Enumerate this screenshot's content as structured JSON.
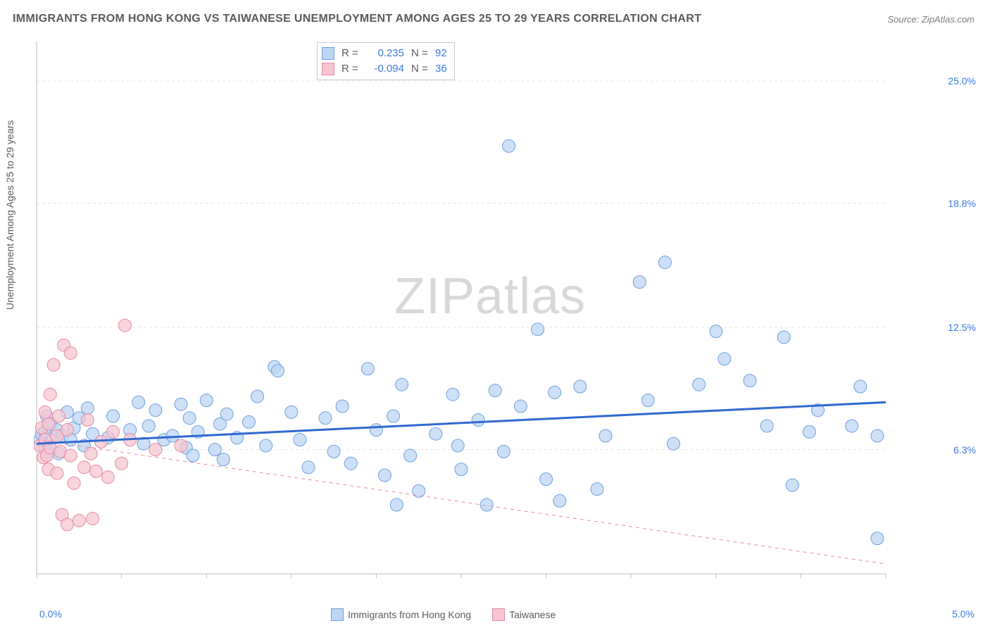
{
  "title": "IMMIGRANTS FROM HONG KONG VS TAIWANESE UNEMPLOYMENT AMONG AGES 25 TO 29 YEARS CORRELATION CHART",
  "source": "Source: ZipAtlas.com",
  "ylabel": "Unemployment Among Ages 25 to 29 years",
  "watermark_a": "ZIP",
  "watermark_b": "atlas",
  "chart": {
    "type": "scatter",
    "background_color": "#ffffff",
    "grid_color": "#e4e4e4",
    "axis_color": "#bdbdbd",
    "xlim": [
      0.0,
      5.0
    ],
    "ylim": [
      0.0,
      27.0
    ],
    "y_ticks": [
      {
        "v": 6.3,
        "label": "6.3%"
      },
      {
        "v": 12.5,
        "label": "12.5%"
      },
      {
        "v": 18.8,
        "label": "18.8%"
      },
      {
        "v": 25.0,
        "label": "25.0%"
      }
    ],
    "x_min_label": "0.0%",
    "x_max_label": "5.0%",
    "x_minor_tick_step": 0.5,
    "series": {
      "hongkong": {
        "label": "Immigrants from Hong Kong",
        "fill": "#bcd6f4",
        "stroke": "#6fa1de",
        "line_color": "#2f69d1",
        "line_width": 3,
        "line_dash": "none",
        "marker_radius": 9,
        "marker_opacity": 0.75,
        "R": "0.235",
        "N": "92",
        "trend": {
          "x1": 0.0,
          "y1": 6.6,
          "x2": 5.0,
          "y2": 8.7
        },
        "points": [
          [
            0.02,
            6.8
          ],
          [
            0.03,
            7.1
          ],
          [
            0.05,
            6.4
          ],
          [
            0.05,
            7.2
          ],
          [
            0.06,
            8.0
          ],
          [
            0.07,
            6.2
          ],
          [
            0.08,
            7.6
          ],
          [
            0.1,
            6.9
          ],
          [
            0.12,
            7.3
          ],
          [
            0.13,
            6.1
          ],
          [
            0.15,
            7.0
          ],
          [
            0.18,
            8.2
          ],
          [
            0.2,
            6.8
          ],
          [
            0.22,
            7.4
          ],
          [
            0.25,
            7.9
          ],
          [
            0.28,
            6.5
          ],
          [
            0.3,
            8.4
          ],
          [
            0.33,
            7.1
          ],
          [
            0.42,
            6.9
          ],
          [
            0.45,
            8.0
          ],
          [
            0.55,
            7.3
          ],
          [
            0.6,
            8.7
          ],
          [
            0.63,
            6.6
          ],
          [
            0.66,
            7.5
          ],
          [
            0.7,
            8.3
          ],
          [
            0.75,
            6.8
          ],
          [
            0.8,
            7.0
          ],
          [
            0.85,
            8.6
          ],
          [
            0.88,
            6.4
          ],
          [
            0.9,
            7.9
          ],
          [
            0.92,
            6.0
          ],
          [
            0.95,
            7.2
          ],
          [
            1.0,
            8.8
          ],
          [
            1.05,
            6.3
          ],
          [
            1.08,
            7.6
          ],
          [
            1.1,
            5.8
          ],
          [
            1.12,
            8.1
          ],
          [
            1.18,
            6.9
          ],
          [
            1.25,
            7.7
          ],
          [
            1.3,
            9.0
          ],
          [
            1.35,
            6.5
          ],
          [
            1.4,
            10.5
          ],
          [
            1.42,
            10.3
          ],
          [
            1.5,
            8.2
          ],
          [
            1.55,
            6.8
          ],
          [
            1.6,
            5.4
          ],
          [
            1.7,
            7.9
          ],
          [
            1.75,
            6.2
          ],
          [
            1.8,
            8.5
          ],
          [
            1.85,
            5.6
          ],
          [
            1.95,
            10.4
          ],
          [
            2.0,
            7.3
          ],
          [
            2.05,
            5.0
          ],
          [
            2.1,
            8.0
          ],
          [
            2.12,
            3.5
          ],
          [
            2.15,
            9.6
          ],
          [
            2.2,
            6.0
          ],
          [
            2.25,
            4.2
          ],
          [
            2.35,
            7.1
          ],
          [
            2.45,
            9.1
          ],
          [
            2.48,
            6.5
          ],
          [
            2.5,
            5.3
          ],
          [
            2.6,
            7.8
          ],
          [
            2.65,
            3.5
          ],
          [
            2.7,
            9.3
          ],
          [
            2.75,
            6.2
          ],
          [
            2.78,
            21.7
          ],
          [
            2.85,
            8.5
          ],
          [
            2.95,
            12.4
          ],
          [
            3.0,
            4.8
          ],
          [
            3.05,
            9.2
          ],
          [
            3.08,
            3.7
          ],
          [
            3.2,
            9.5
          ],
          [
            3.3,
            4.3
          ],
          [
            3.35,
            7.0
          ],
          [
            3.55,
            14.8
          ],
          [
            3.6,
            8.8
          ],
          [
            3.7,
            15.8
          ],
          [
            3.75,
            6.6
          ],
          [
            3.9,
            9.6
          ],
          [
            4.0,
            12.3
          ],
          [
            4.05,
            10.9
          ],
          [
            4.2,
            9.8
          ],
          [
            4.3,
            7.5
          ],
          [
            4.4,
            12.0
          ],
          [
            4.45,
            4.5
          ],
          [
            4.55,
            7.2
          ],
          [
            4.6,
            8.3
          ],
          [
            4.8,
            7.5
          ],
          [
            4.85,
            9.5
          ],
          [
            4.95,
            1.8
          ],
          [
            4.95,
            7.0
          ]
        ]
      },
      "taiwanese": {
        "label": "Taiwanese",
        "fill": "#f6c5d1",
        "stroke": "#e88ba3",
        "line_color": "#e88ba3",
        "line_width": 1,
        "line_dash": "5,5",
        "marker_radius": 9,
        "marker_opacity": 0.75,
        "R": "-0.094",
        "N": "36",
        "trend": {
          "x1": 0.0,
          "y1": 6.8,
          "x2": 5.0,
          "y2": 0.5
        },
        "points": [
          [
            0.02,
            6.5
          ],
          [
            0.03,
            7.4
          ],
          [
            0.04,
            5.9
          ],
          [
            0.05,
            6.8
          ],
          [
            0.05,
            8.2
          ],
          [
            0.06,
            6.0
          ],
          [
            0.07,
            7.6
          ],
          [
            0.07,
            5.3
          ],
          [
            0.08,
            9.1
          ],
          [
            0.08,
            6.4
          ],
          [
            0.1,
            10.6
          ],
          [
            0.12,
            7.0
          ],
          [
            0.12,
            5.1
          ],
          [
            0.13,
            8.0
          ],
          [
            0.14,
            6.2
          ],
          [
            0.15,
            3.0
          ],
          [
            0.16,
            11.6
          ],
          [
            0.18,
            7.3
          ],
          [
            0.18,
            2.5
          ],
          [
            0.2,
            11.2
          ],
          [
            0.2,
            6.0
          ],
          [
            0.22,
            4.6
          ],
          [
            0.25,
            2.7
          ],
          [
            0.28,
            5.4
          ],
          [
            0.3,
            7.8
          ],
          [
            0.32,
            6.1
          ],
          [
            0.33,
            2.8
          ],
          [
            0.35,
            5.2
          ],
          [
            0.38,
            6.7
          ],
          [
            0.42,
            4.9
          ],
          [
            0.45,
            7.2
          ],
          [
            0.5,
            5.6
          ],
          [
            0.52,
            12.6
          ],
          [
            0.55,
            6.8
          ],
          [
            0.7,
            6.3
          ],
          [
            0.85,
            6.5
          ]
        ]
      }
    },
    "stats_value_color": "#3b7ae0",
    "stats_label_color": "#5a5a5a"
  },
  "title_fontsize": 16,
  "label_fontsize": 14
}
